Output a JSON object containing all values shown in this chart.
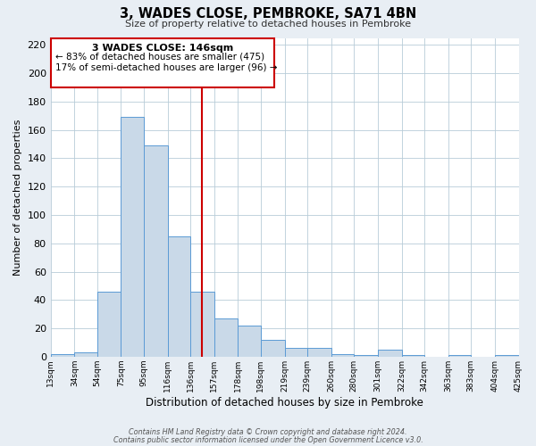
{
  "title": "3, WADES CLOSE, PEMBROKE, SA71 4BN",
  "subtitle": "Size of property relative to detached houses in Pembroke",
  "xlabel": "Distribution of detached houses by size in Pembroke",
  "ylabel": "Number of detached properties",
  "bar_edges": [
    13,
    34,
    54,
    75,
    95,
    116,
    136,
    157,
    178,
    198,
    219,
    239,
    260,
    280,
    301,
    322,
    342,
    363,
    383,
    404,
    425
  ],
  "bar_heights": [
    2,
    3,
    46,
    169,
    149,
    85,
    46,
    27,
    22,
    12,
    6,
    6,
    2,
    1,
    5,
    1,
    0,
    1,
    0,
    1
  ],
  "bar_color": "#c9d9e8",
  "bar_edgecolor": "#5b9bd5",
  "vline_x": 146,
  "vline_color": "#cc0000",
  "ylim": [
    0,
    225
  ],
  "yticks": [
    0,
    20,
    40,
    60,
    80,
    100,
    120,
    140,
    160,
    180,
    200,
    220
  ],
  "annotation_title": "3 WADES CLOSE: 146sqm",
  "annotation_line1": "← 83% of detached houses are smaller (475)",
  "annotation_line2": "17% of semi-detached houses are larger (96) →",
  "annotation_box_color": "#cc0000",
  "footer_line1": "Contains HM Land Registry data © Crown copyright and database right 2024.",
  "footer_line2": "Contains public sector information licensed under the Open Government Licence v3.0.",
  "bg_color": "#e8eef4",
  "plot_bg_color": "#ffffff",
  "grid_color": "#b8ccd8"
}
